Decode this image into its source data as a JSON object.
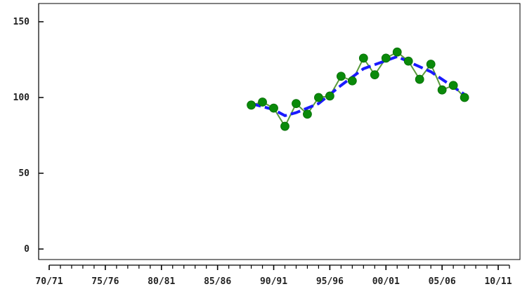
{
  "chart_data": {
    "type": "line",
    "title": "",
    "xlabel": "",
    "ylabel": "",
    "xlim": [
      1970,
      2011
    ],
    "ylim": [
      0,
      160
    ],
    "grid": false,
    "x_ticks": [
      "70/71",
      "75/76",
      "80/81",
      "85/86",
      "90/91",
      "95/96",
      "00/01",
      "05/06",
      "10/11"
    ],
    "y_ticks": [
      "0",
      "50",
      "100",
      "150"
    ],
    "series": [
      {
        "style": "solid line with markers",
        "color": "#5a9a3c",
        "marker_color": "#0a8a0a",
        "x": [
          1988,
          1989,
          1990,
          1991,
          1992,
          1993,
          1994,
          1995,
          1996,
          1997,
          1998,
          1999,
          2000,
          2001,
          2002,
          2003,
          2004,
          2005,
          2006,
          2007
        ],
        "values": [
          95,
          97,
          93,
          81,
          96,
          89,
          100,
          101,
          114,
          111,
          126,
          115,
          126,
          130,
          124,
          112,
          122,
          105,
          108,
          100
        ]
      },
      {
        "style": "dashed trend",
        "color": "#1a1aff",
        "x": [
          1988,
          1990,
          1991,
          1992,
          1994,
          1996,
          1998,
          2001,
          2004,
          2007
        ],
        "values": [
          96,
          92,
          88,
          90,
          96,
          108,
          119,
          127,
          117,
          102
        ]
      }
    ]
  }
}
